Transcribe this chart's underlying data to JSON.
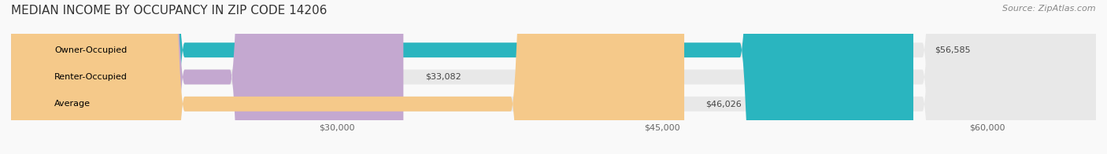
{
  "title": "MEDIAN INCOME BY OCCUPANCY IN ZIP CODE 14206",
  "source": "Source: ZipAtlas.com",
  "categories": [
    "Owner-Occupied",
    "Renter-Occupied",
    "Average"
  ],
  "values": [
    56585,
    33082,
    46026
  ],
  "bar_colors": [
    "#2ab5bf",
    "#c4a8d0",
    "#f5c98a"
  ],
  "bar_bg_color": "#e8e8e8",
  "value_labels": [
    "$56,585",
    "$33,082",
    "$46,026"
  ],
  "x_min": 15000,
  "x_max": 65000,
  "xticks": [
    30000,
    45000,
    60000
  ],
  "xtick_labels": [
    "$30,000",
    "$45,000",
    "$60,000"
  ],
  "title_fontsize": 11,
  "source_fontsize": 8,
  "bar_label_fontsize": 8,
  "value_label_fontsize": 8,
  "background_color": "#f9f9f9",
  "bar_height": 0.55,
  "bar_bg_alpha": 0.5
}
